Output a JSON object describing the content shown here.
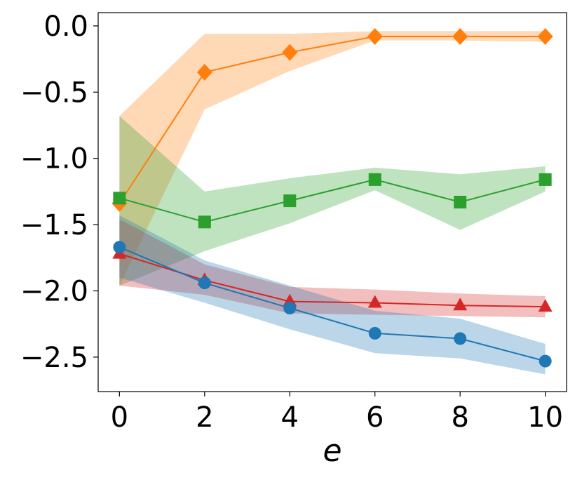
{
  "chart_data": {
    "type": "line",
    "title": "",
    "xlabel": "e",
    "ylabel": "",
    "xlim": [
      -0.5,
      10.5
    ],
    "ylim": [
      -2.76,
      0.1
    ],
    "xticks": [
      0,
      2,
      4,
      6,
      8,
      10
    ],
    "yticks": [
      0.0,
      -0.5,
      -1.0,
      -1.5,
      -2.0,
      -2.5
    ],
    "xtick_labels": [
      "0",
      "2",
      "4",
      "6",
      "8",
      "10"
    ],
    "ytick_labels": [
      "0.0",
      "−0.5",
      "−1.0",
      "−1.5",
      "−2.0",
      "−2.5"
    ],
    "grid": false,
    "legend": "none",
    "x": [
      0,
      2,
      4,
      6,
      8,
      10
    ],
    "series": [
      {
        "name": "orange",
        "color": "#ff7f0e",
        "marker": "diamond",
        "values": [
          -1.34,
          -0.35,
          -0.2,
          -0.08,
          -0.08,
          -0.08
        ],
        "upper": [
          -0.68,
          -0.06,
          -0.06,
          -0.04,
          -0.04,
          -0.04
        ],
        "lower": [
          -1.96,
          -0.63,
          -0.34,
          -0.11,
          -0.11,
          -0.12
        ]
      },
      {
        "name": "green",
        "color": "#2ca02c",
        "marker": "square",
        "values": [
          -1.3,
          -1.48,
          -1.32,
          -1.16,
          -1.33,
          -1.16
        ],
        "upper": [
          -0.68,
          -1.25,
          -1.15,
          -1.07,
          -1.12,
          -1.06
        ],
        "lower": [
          -1.96,
          -1.7,
          -1.49,
          -1.24,
          -1.54,
          -1.25
        ]
      },
      {
        "name": "red",
        "color": "#d62728",
        "marker": "triangle",
        "values": [
          -1.72,
          -1.92,
          -2.08,
          -2.09,
          -2.11,
          -2.12
        ],
        "upper": [
          -1.46,
          -1.8,
          -1.97,
          -1.99,
          -2.02,
          -2.04
        ],
        "lower": [
          -1.96,
          -2.03,
          -2.17,
          -2.18,
          -2.19,
          -2.2
        ]
      },
      {
        "name": "blue",
        "color": "#1f77b4",
        "marker": "circle",
        "values": [
          -1.67,
          -1.94,
          -2.13,
          -2.32,
          -2.36,
          -2.53
        ],
        "upper": [
          -1.43,
          -1.77,
          -1.96,
          -2.15,
          -2.21,
          -2.4
        ],
        "lower": [
          -1.9,
          -2.09,
          -2.29,
          -2.47,
          -2.51,
          -2.63
        ]
      }
    ]
  }
}
